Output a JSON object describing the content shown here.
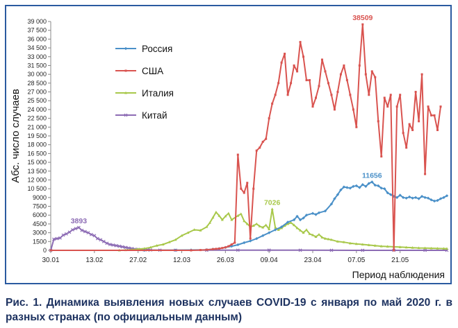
{
  "chart_data": {
    "type": "line",
    "ylabel": "Абс. число случаев",
    "xlabel": "Период наблюдения",
    "ylim": [
      0,
      39000
    ],
    "yticks": [
      0,
      1500,
      3000,
      4500,
      6000,
      7500,
      9000,
      10500,
      12000,
      13500,
      15000,
      16500,
      18000,
      19500,
      21000,
      22500,
      24000,
      25500,
      27000,
      28500,
      30000,
      31500,
      33000,
      34500,
      36000,
      37500,
      39000
    ],
    "ytick_labels": [
      "0",
      "1500",
      "3000",
      "4500",
      "6000",
      "7500",
      "9000",
      "10 500",
      "12 000",
      "13 500",
      "15 000",
      "16 500",
      "18 000",
      "19 500",
      "21 000",
      "22 500",
      "24 000",
      "25 500",
      "27 000",
      "28 500",
      "30 000",
      "31 500",
      "33 000",
      "34 500",
      "36 000",
      "37 500",
      "39 000"
    ],
    "xticks": [
      "30.01",
      "13.02",
      "27.02",
      "12.03",
      "26.03",
      "09.04",
      "23.04",
      "07.05",
      "21.05"
    ],
    "legend": "top-left",
    "grid": false,
    "series": [
      {
        "name": "Россия",
        "color": "#4a90c8",
        "marker": "diamond",
        "values": [
          [
            0,
            0
          ],
          [
            30,
            0
          ],
          [
            40,
            20
          ],
          [
            45,
            60
          ],
          [
            50,
            100
          ],
          [
            52,
            200
          ],
          [
            54,
            300
          ],
          [
            56,
            500
          ],
          [
            58,
            700
          ],
          [
            60,
            950
          ],
          [
            62,
            1300
          ],
          [
            64,
            1600
          ],
          [
            66,
            2000
          ],
          [
            68,
            2500
          ],
          [
            70,
            3000
          ],
          [
            72,
            3500
          ],
          [
            74,
            4000
          ],
          [
            76,
            4800
          ],
          [
            78,
            5200
          ],
          [
            79,
            5800
          ],
          [
            80,
            5200
          ],
          [
            81,
            5500
          ],
          [
            82,
            6000
          ],
          [
            84,
            6300
          ],
          [
            85,
            6100
          ],
          [
            86,
            6400
          ],
          [
            88,
            6700
          ],
          [
            90,
            7900
          ],
          [
            91,
            8800
          ],
          [
            92,
            9500
          ],
          [
            93,
            10300
          ],
          [
            94,
            10800
          ],
          [
            95,
            10700
          ],
          [
            96,
            10600
          ],
          [
            97,
            10900
          ],
          [
            98,
            11000
          ],
          [
            99,
            10700
          ],
          [
            100,
            11200
          ],
          [
            101,
            10900
          ],
          [
            102,
            11400
          ],
          [
            103,
            11656
          ],
          [
            104,
            11100
          ],
          [
            105,
            11000
          ],
          [
            106,
            10600
          ],
          [
            107,
            10500
          ],
          [
            108,
            9800
          ],
          [
            109,
            9500
          ],
          [
            110,
            9200
          ],
          [
            111,
            9000
          ],
          [
            112,
            9400
          ],
          [
            113,
            9000
          ],
          [
            114,
            8900
          ],
          [
            115,
            9100
          ],
          [
            116,
            8900
          ],
          [
            117,
            9000
          ],
          [
            118,
            8800
          ],
          [
            119,
            9200
          ],
          [
            120,
            9000
          ],
          [
            121,
            8900
          ],
          [
            122,
            8600
          ],
          [
            123,
            8400
          ],
          [
            124,
            8500
          ],
          [
            125,
            8800
          ],
          [
            126,
            9000
          ],
          [
            127,
            9300
          ]
        ]
      },
      {
        "name": "США",
        "color": "#d9534f",
        "marker": "square",
        "values": [
          [
            0,
            0
          ],
          [
            45,
            0
          ],
          [
            48,
            50
          ],
          [
            50,
            100
          ],
          [
            52,
            200
          ],
          [
            53,
            250
          ],
          [
            54,
            300
          ],
          [
            55,
            400
          ],
          [
            56,
            500
          ],
          [
            57,
            700
          ],
          [
            58,
            1000
          ],
          [
            59,
            1300
          ],
          [
            60,
            16300
          ],
          [
            61,
            10500
          ],
          [
            62,
            9800
          ],
          [
            63,
            11500
          ],
          [
            64,
            2000
          ],
          [
            65,
            10500
          ],
          [
            66,
            17000
          ],
          [
            67,
            17500
          ],
          [
            68,
            18500
          ],
          [
            69,
            19000
          ],
          [
            70,
            22500
          ],
          [
            71,
            25000
          ],
          [
            72,
            26500
          ],
          [
            73,
            28500
          ],
          [
            74,
            32000
          ],
          [
            75,
            33500
          ],
          [
            76,
            26500
          ],
          [
            77,
            28500
          ],
          [
            78,
            31500
          ],
          [
            79,
            30500
          ],
          [
            80,
            35500
          ],
          [
            81,
            33000
          ],
          [
            82,
            29000
          ],
          [
            83,
            29000
          ],
          [
            84,
            24500
          ],
          [
            85,
            26000
          ],
          [
            86,
            28000
          ],
          [
            87,
            32500
          ],
          [
            88,
            30500
          ],
          [
            89,
            28500
          ],
          [
            90,
            26500
          ],
          [
            91,
            24000
          ],
          [
            92,
            27000
          ],
          [
            93,
            30000
          ],
          [
            94,
            31500
          ],
          [
            95,
            29000
          ],
          [
            96,
            26500
          ],
          [
            97,
            24000
          ],
          [
            98,
            21000
          ],
          [
            99,
            31500
          ],
          [
            100,
            38509
          ],
          [
            101,
            30000
          ],
          [
            102,
            26500
          ],
          [
            103,
            30500
          ],
          [
            104,
            29500
          ],
          [
            105,
            22000
          ],
          [
            106,
            16000
          ],
          [
            107,
            26000
          ],
          [
            108,
            24500
          ],
          [
            109,
            26500
          ],
          [
            110,
            0
          ],
          [
            111,
            24500
          ],
          [
            112,
            26500
          ],
          [
            113,
            20000
          ],
          [
            114,
            17500
          ],
          [
            115,
            21500
          ],
          [
            116,
            20500
          ],
          [
            117,
            27000
          ],
          [
            118,
            22000
          ],
          [
            119,
            30000
          ],
          [
            120,
            13000
          ],
          [
            121,
            24500
          ],
          [
            122,
            23000
          ],
          [
            123,
            23000
          ],
          [
            124,
            20500
          ],
          [
            125,
            24500
          ]
        ]
      },
      {
        "name": "Италия",
        "color": "#a8c84a",
        "marker": "triangle",
        "values": [
          [
            0,
            0
          ],
          [
            22,
            0
          ],
          [
            24,
            50
          ],
          [
            26,
            100
          ],
          [
            28,
            200
          ],
          [
            30,
            300
          ],
          [
            32,
            500
          ],
          [
            34,
            800
          ],
          [
            36,
            1000
          ],
          [
            38,
            1400
          ],
          [
            40,
            1800
          ],
          [
            42,
            2500
          ],
          [
            44,
            3000
          ],
          [
            46,
            3500
          ],
          [
            48,
            3400
          ],
          [
            50,
            4000
          ],
          [
            51,
            4700
          ],
          [
            52,
            5600
          ],
          [
            53,
            6500
          ],
          [
            54,
            5900
          ],
          [
            55,
            5200
          ],
          [
            56,
            5800
          ],
          [
            57,
            6300
          ],
          [
            58,
            5200
          ],
          [
            60,
            5900
          ],
          [
            61,
            6200
          ],
          [
            62,
            5000
          ],
          [
            63,
            4500
          ],
          [
            64,
            4000
          ],
          [
            65,
            4200
          ],
          [
            66,
            4500
          ],
          [
            67,
            4100
          ],
          [
            68,
            3900
          ],
          [
            69,
            4300
          ],
          [
            70,
            3600
          ],
          [
            71,
            7026
          ],
          [
            72,
            3900
          ],
          [
            73,
            3500
          ],
          [
            74,
            3800
          ],
          [
            75,
            4200
          ],
          [
            76,
            4500
          ],
          [
            77,
            4700
          ],
          [
            78,
            4300
          ],
          [
            79,
            3800
          ],
          [
            80,
            3400
          ],
          [
            81,
            3000
          ],
          [
            82,
            3500
          ],
          [
            83,
            2800
          ],
          [
            84,
            2600
          ],
          [
            85,
            2300
          ],
          [
            86,
            2700
          ],
          [
            87,
            2200
          ],
          [
            88,
            2000
          ],
          [
            89,
            1900
          ],
          [
            90,
            1800
          ],
          [
            92,
            1500
          ],
          [
            94,
            1400
          ],
          [
            96,
            1200
          ],
          [
            98,
            1100
          ],
          [
            100,
            1000
          ],
          [
            102,
            900
          ],
          [
            104,
            800
          ],
          [
            106,
            700
          ],
          [
            108,
            650
          ],
          [
            110,
            600
          ],
          [
            112,
            550
          ],
          [
            114,
            500
          ],
          [
            116,
            450
          ],
          [
            118,
            400
          ],
          [
            120,
            380
          ],
          [
            122,
            350
          ],
          [
            124,
            320
          ],
          [
            126,
            300
          ],
          [
            127,
            280
          ]
        ]
      },
      {
        "name": "Китай",
        "color": "#8c6bb4",
        "marker": "cross",
        "values": [
          [
            0,
            0
          ],
          [
            1,
            1900
          ],
          [
            2,
            2000
          ],
          [
            3,
            2100
          ],
          [
            4,
            2600
          ],
          [
            5,
            2800
          ],
          [
            6,
            3100
          ],
          [
            7,
            3500
          ],
          [
            8,
            3700
          ],
          [
            9,
            3893
          ],
          [
            10,
            3400
          ],
          [
            11,
            3200
          ],
          [
            12,
            3000
          ],
          [
            13,
            2700
          ],
          [
            14,
            2500
          ],
          [
            15,
            2000
          ],
          [
            16,
            1800
          ],
          [
            17,
            1500
          ],
          [
            18,
            1200
          ],
          [
            19,
            1000
          ],
          [
            20,
            900
          ],
          [
            21,
            800
          ],
          [
            22,
            700
          ],
          [
            23,
            600
          ],
          [
            24,
            500
          ],
          [
            25,
            400
          ],
          [
            26,
            300
          ],
          [
            27,
            200
          ],
          [
            28,
            150
          ],
          [
            29,
            120
          ],
          [
            30,
            100
          ],
          [
            31,
            80
          ],
          [
            32,
            60
          ],
          [
            35,
            40
          ],
          [
            40,
            30
          ],
          [
            50,
            20
          ],
          [
            60,
            30
          ],
          [
            70,
            40
          ],
          [
            80,
            20
          ],
          [
            90,
            10
          ],
          [
            100,
            5
          ],
          [
            110,
            5
          ],
          [
            120,
            5
          ],
          [
            127,
            0
          ]
        ]
      }
    ],
    "annotations": [
      {
        "text": "38509",
        "series": "США",
        "x": 100,
        "y": 38509
      },
      {
        "text": "11656",
        "series": "Россия",
        "x": 103,
        "y": 11656
      },
      {
        "text": "7026",
        "series": "Италия",
        "x": 71,
        "y": 7026
      },
      {
        "text": "3893",
        "series": "Китай",
        "x": 9,
        "y": 3893
      }
    ]
  },
  "caption": "Рис. 1. Динамика выявления новых случаев COVID-19 с января по май 2020 г. в разных странах (по официальным данным)"
}
